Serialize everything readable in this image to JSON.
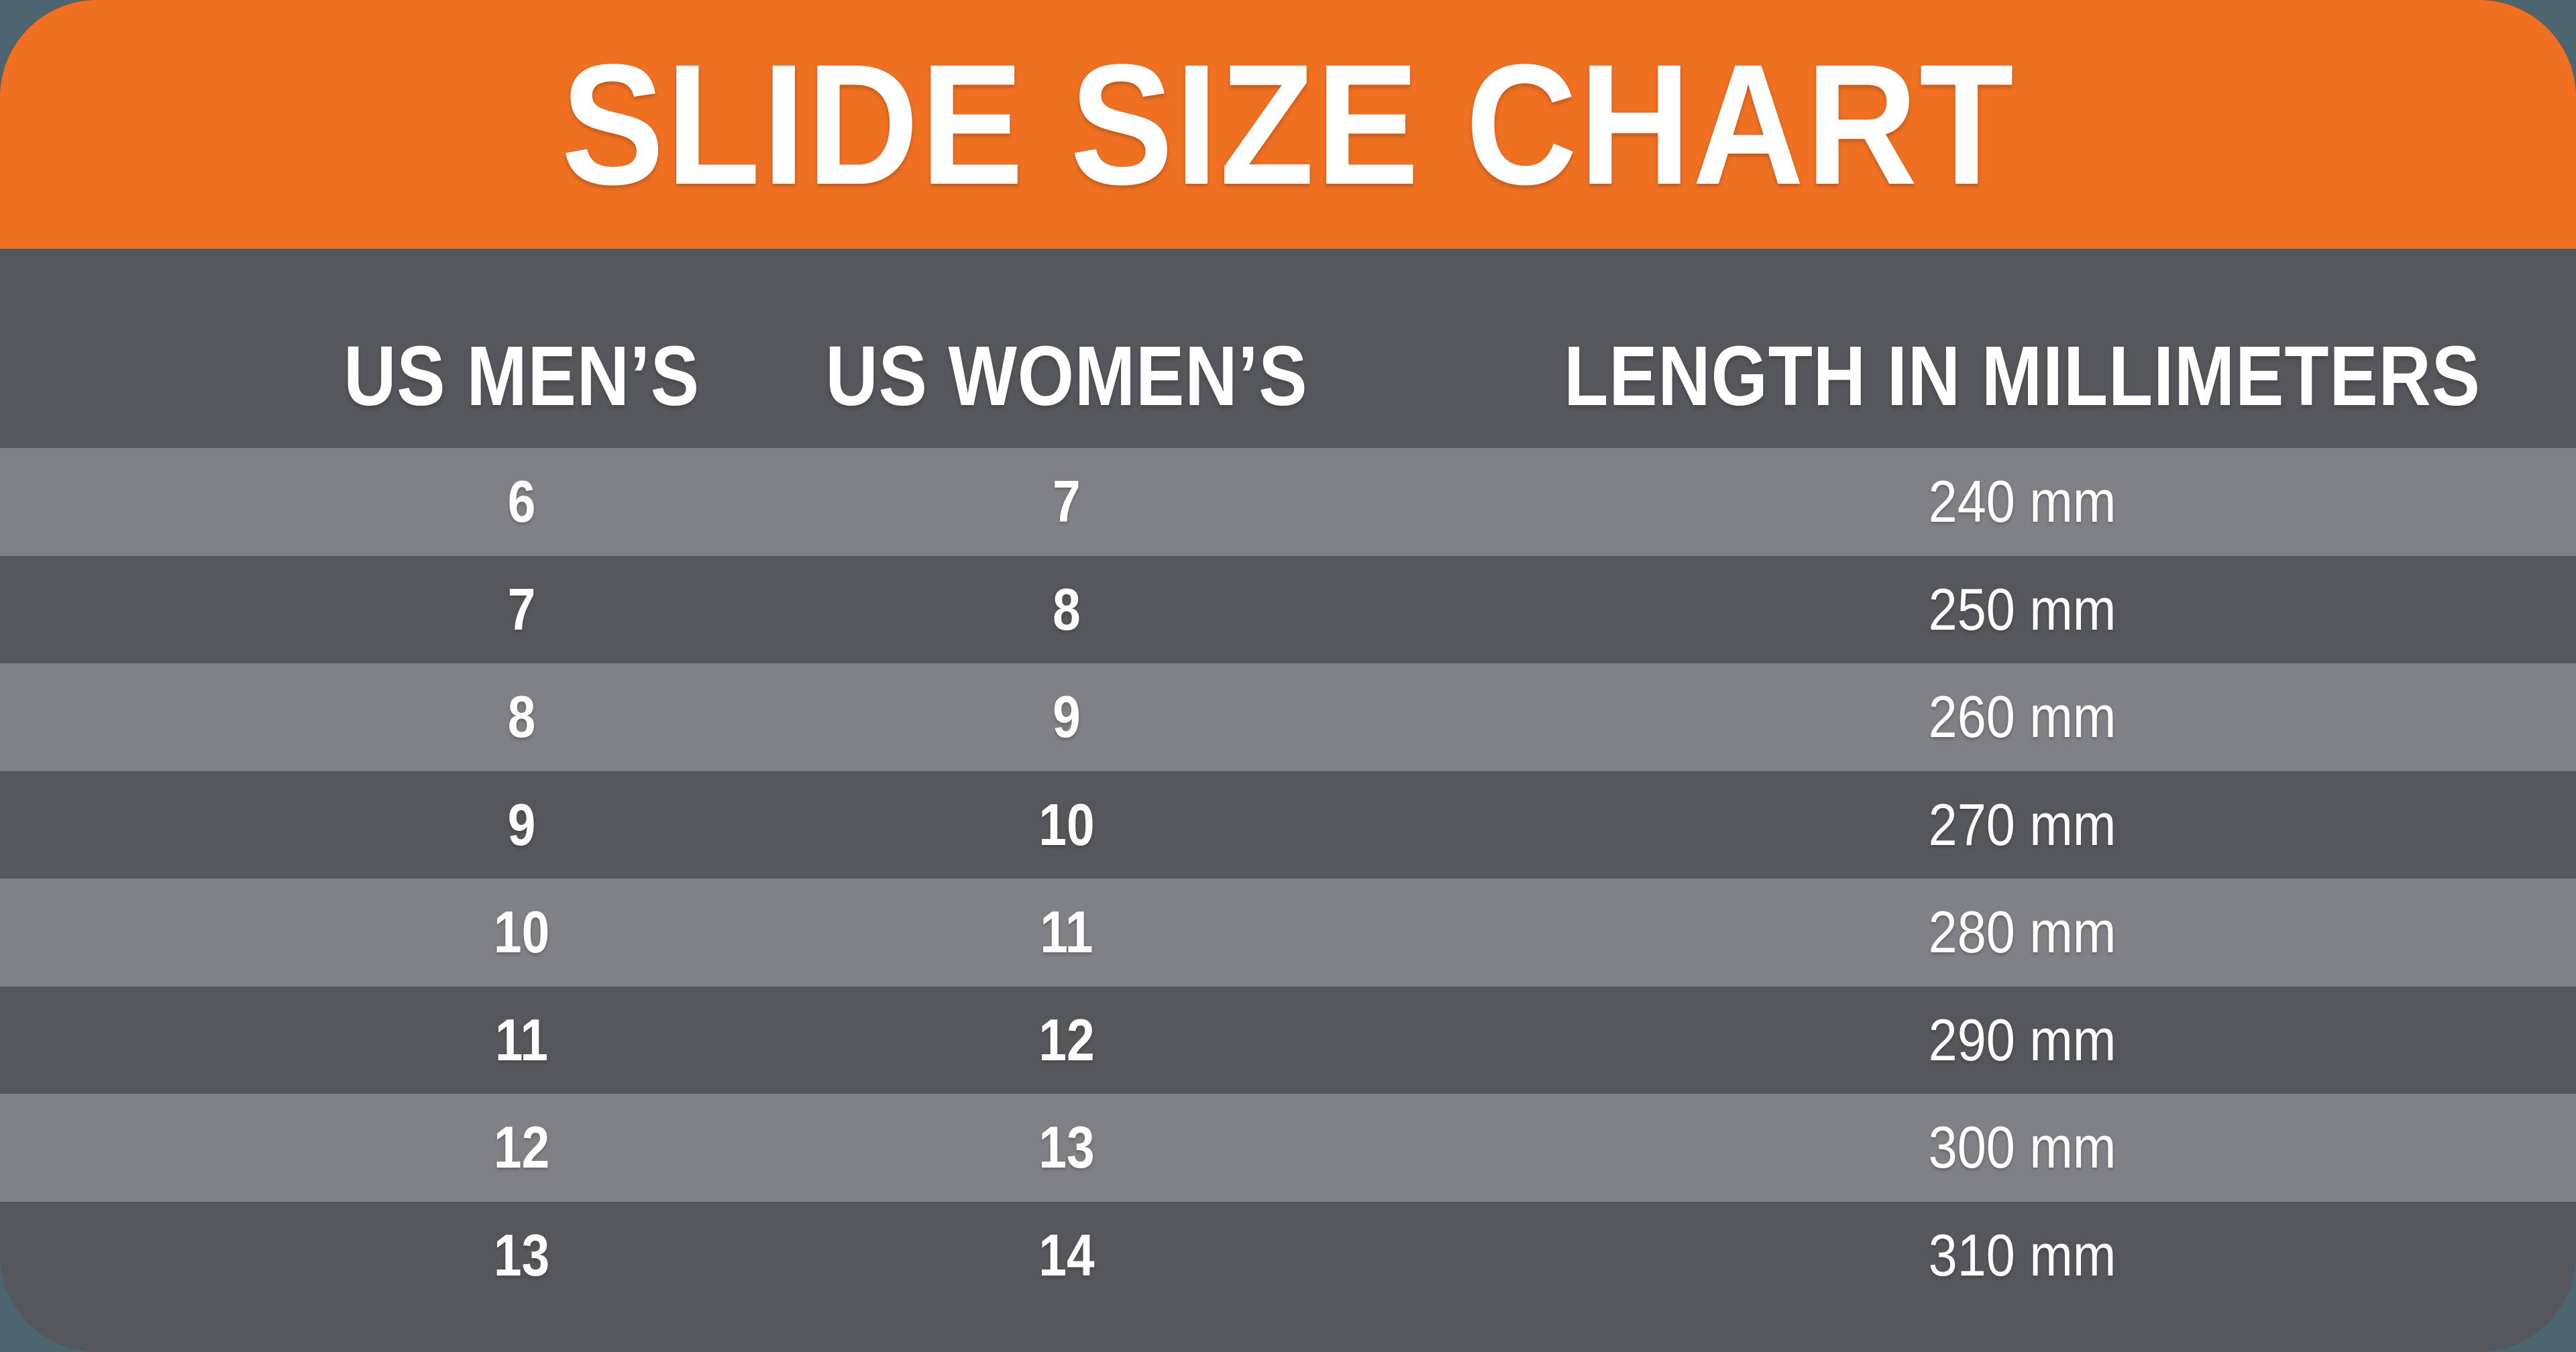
{
  "chart_data": {
    "type": "table",
    "title": "SLIDE SIZE CHART",
    "columns": [
      "US MEN’S",
      "US WOMEN’S",
      "LENGTH IN MILLIMETERS"
    ],
    "rows": [
      [
        "6",
        "7",
        "240 mm"
      ],
      [
        "7",
        "8",
        "250 mm"
      ],
      [
        "8",
        "9",
        "260 mm"
      ],
      [
        "9",
        "10",
        "270 mm"
      ],
      [
        "10",
        "11",
        "280 mm"
      ],
      [
        "11",
        "12",
        "290 mm"
      ],
      [
        "12",
        "13",
        "300 mm"
      ],
      [
        "13",
        "14",
        "310 mm"
      ]
    ],
    "layout": {
      "header_band_position": "top",
      "row_striping": "alternating light and dark, first data row light",
      "column_alignment": "center"
    }
  },
  "colors": {
    "page_background": "#4D6571",
    "card_background": "#55575C",
    "header_band": "#F07022",
    "row_light": "#808186",
    "text": "#FFFFFF"
  }
}
